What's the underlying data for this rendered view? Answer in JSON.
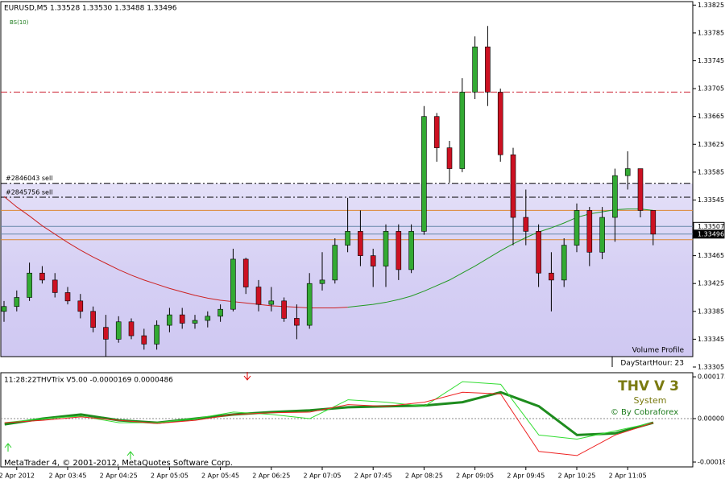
{
  "chart_data": [
    {
      "type": "candlestick",
      "title": "EURUSD,M5  1.33528 1.33530 1.33488 1.33496",
      "subtitle": "BS(10)",
      "categories": [
        null,
        "2 Apr 2012",
        null,
        null,
        null,
        "2 Apr 03:45",
        null,
        null,
        null,
        "2 Apr 04:25",
        null,
        null,
        null,
        "2 Apr 05:05",
        null,
        null,
        null,
        "2 Apr 05:45",
        null,
        null,
        null,
        "2 Apr 06:25",
        null,
        null,
        null,
        "2 Apr 07:05",
        null,
        null,
        null,
        "2 Apr 07:45",
        null,
        null,
        null,
        "2 Apr 08:25",
        null,
        null,
        null,
        "2 Apr 09:05",
        null,
        null,
        null,
        "2 Apr 09:45",
        null,
        null,
        null,
        "2 Apr 10:25",
        null,
        null,
        null,
        "2 Apr 11:05",
        null,
        null
      ],
      "open": [
        1.33385,
        1.33392,
        1.33405,
        1.3344,
        1.3343,
        1.33412,
        1.334,
        1.33385,
        1.33362,
        1.33345,
        1.3337,
        1.3335,
        1.33338,
        1.33365,
        1.3338,
        1.33368,
        1.33372,
        1.33378,
        1.33388,
        1.3346,
        1.3342,
        1.33395,
        1.334,
        1.33375,
        1.33365,
        1.33425,
        1.3343,
        1.3348,
        1.335,
        1.33465,
        1.3345,
        1.335,
        1.33445,
        1.335,
        1.33665,
        1.3362,
        1.3359,
        1.337,
        1.33765,
        1.337,
        1.3361,
        1.3352,
        1.335,
        1.3344,
        1.3343,
        1.3348,
        1.3353,
        1.3347,
        1.3352,
        1.3358,
        1.3359,
        1.3353
      ],
      "high": [
        1.334,
        1.33415,
        1.33455,
        1.3345,
        1.3344,
        1.3342,
        1.3341,
        1.33392,
        1.3338,
        1.33378,
        1.33375,
        1.3336,
        1.33372,
        1.3339,
        1.3339,
        1.3338,
        1.33385,
        1.33395,
        1.33475,
        1.33462,
        1.3343,
        1.3342,
        1.33405,
        1.33395,
        1.3344,
        1.3347,
        1.3349,
        1.33548,
        1.3353,
        1.33475,
        1.3351,
        1.3351,
        1.3351,
        1.3368,
        1.3367,
        1.3363,
        1.3372,
        1.3378,
        1.33795,
        1.33705,
        1.3362,
        1.3356,
        1.3351,
        1.3347,
        1.3349,
        1.3354,
        1.33535,
        1.33535,
        1.3359,
        1.33615,
        1.3359,
        1.3353
      ],
      "low": [
        1.3337,
        1.33385,
        1.334,
        1.33425,
        1.33405,
        1.33395,
        1.33375,
        1.33355,
        1.3332,
        1.3334,
        1.33345,
        1.3333,
        1.3333,
        1.33355,
        1.3336,
        1.3336,
        1.33362,
        1.3337,
        1.33385,
        1.3341,
        1.33385,
        1.33385,
        1.3337,
        1.33345,
        1.3336,
        1.33415,
        1.33425,
        1.3347,
        1.3345,
        1.3342,
        1.3342,
        1.3343,
        1.3344,
        1.33495,
        1.336,
        1.3357,
        1.33585,
        1.3369,
        1.3368,
        1.336,
        1.3348,
        1.3348,
        1.3342,
        1.33385,
        1.3342,
        1.3347,
        1.3345,
        1.3346,
        1.33485,
        1.3356,
        1.3352,
        1.3348
      ],
      "close": [
        1.33392,
        1.33405,
        1.3344,
        1.3343,
        1.33412,
        1.334,
        1.33385,
        1.33362,
        1.33345,
        1.3337,
        1.3335,
        1.33338,
        1.33365,
        1.3338,
        1.33368,
        1.33372,
        1.33378,
        1.33388,
        1.3346,
        1.3342,
        1.33395,
        1.334,
        1.33375,
        1.33365,
        1.33425,
        1.3343,
        1.3348,
        1.335,
        1.33465,
        1.3345,
        1.335,
        1.33445,
        1.335,
        1.33665,
        1.3362,
        1.3359,
        1.337,
        1.33765,
        1.337,
        1.3361,
        1.3352,
        1.335,
        1.3344,
        1.3343,
        1.3348,
        1.3353,
        1.3347,
        1.3352,
        1.3358,
        1.3359,
        1.3353,
        1.33496
      ],
      "up_color": "#33aa33",
      "down_color": "#cc1122",
      "lines": [
        {
          "color": "#cc2222",
          "values": [
            1.3355,
            1.33535,
            1.33522,
            1.33508,
            1.33496,
            1.33484,
            1.33473,
            1.33463,
            1.33454,
            1.33445,
            1.33437,
            1.3343,
            1.33424,
            1.33418,
            1.33413,
            1.33408,
            1.33404,
            1.33401,
            1.33399,
            1.33397,
            1.33395,
            1.33393,
            1.33392,
            1.33391,
            1.3339,
            1.3339,
            1.3339,
            1.33391,
            null,
            null,
            null,
            null,
            null,
            null,
            null,
            null,
            null,
            null,
            null,
            null,
            null,
            null,
            null,
            null,
            null,
            null,
            null,
            null,
            null,
            null,
            null,
            null
          ]
        },
        {
          "color": "#229922",
          "values": [
            null,
            null,
            null,
            null,
            null,
            null,
            null,
            null,
            null,
            null,
            null,
            null,
            null,
            null,
            null,
            null,
            null,
            null,
            null,
            null,
            null,
            null,
            null,
            null,
            null,
            null,
            null,
            1.33391,
            1.33393,
            1.33395,
            1.33398,
            1.33402,
            1.33407,
            1.33414,
            1.33422,
            1.3343,
            1.3344,
            1.3345,
            1.33461,
            1.33472,
            1.33482,
            1.33491,
            1.33499,
            1.33505,
            1.33512,
            1.3352,
            1.33525,
            1.33528,
            1.33531,
            1.33532,
            1.33532,
            1.3353
          ]
        }
      ],
      "levels": [
        {
          "value": 1.337,
          "color": "#cc2233",
          "dash": "8 3 2 3"
        },
        {
          "value": 1.33569,
          "color": "#000000",
          "dash": "8 3 2 3",
          "label": "#2846043 sell"
        },
        {
          "value": 1.33549,
          "color": "#000000",
          "dash": "8 3 2 3",
          "label": "#2845756 sell"
        },
        {
          "value": 1.3353,
          "color": "#dd8833",
          "dash": "none"
        },
        {
          "value": 1.33488,
          "color": "#dd8833",
          "dash": "none"
        },
        {
          "value": 1.33507,
          "color": "#6688aa",
          "dash": "none"
        },
        {
          "value": 1.33496,
          "color": "#6688aa",
          "dash": "none"
        }
      ],
      "price_markers": [
        1.33507,
        1.33496
      ],
      "annotations": [
        "Volume Profile",
        "DayStartHour: 23"
      ],
      "ylim": [
        1.3332,
        1.3383
      ],
      "yticks": [
        1.33825,
        1.33785,
        1.33745,
        1.33705,
        1.33665,
        1.33625,
        1.33585,
        1.33545,
        1.33505,
        1.33465,
        1.33425,
        1.33385,
        1.33345,
        1.33305
      ]
    },
    {
      "type": "line",
      "title": "11:28:22THVTrix V5.00 -0.0000169 0.0000486",
      "annotations": [
        "THV V 3",
        "System",
        "© By Cobraforex"
      ],
      "footer": "MetaTrader 4, © 2001-2012, MetaQuotes Software Corp.",
      "x": [
        0,
        3,
        6,
        9,
        12,
        15,
        18,
        21,
        24,
        27,
        30,
        33,
        36,
        39,
        42,
        45,
        48,
        51
      ],
      "series": [
        {
          "color": "#1e8c1e",
          "width": 3,
          "values": [
            -2.4e-05,
            0,
            1.7e-05,
            -7e-06,
            -1.7e-05,
            0,
            1.7e-05,
            2.7e-05,
            3.4e-05,
            4.7e-05,
            5.1e-05,
            5.4e-05,
            6.8e-05,
            0.000109,
            5.1e-05,
            -6.8e-05,
            -6.1e-05,
            -1.7e-05
          ]
        },
        {
          "color": "#33dd33",
          "width": 1,
          "values": [
            -1.7e-05,
            0,
            1e-05,
            -1.7e-05,
            -1.7e-05,
            0,
            2.7e-05,
            1.7e-05,
            0,
            7.8e-05,
            6.8e-05,
            5.1e-05,
            0.000153,
            0.000142,
            -6.8e-05,
            -8.5e-05,
            -5.1e-05,
            -1.7e-05
          ]
        },
        {
          "color": "#ee2222",
          "width": 1,
          "values": [
            -1.7e-05,
            -7e-06,
            7e-06,
            -7e-06,
            -2e-05,
            -7e-06,
            1.7e-05,
            2.4e-05,
            2.7e-05,
            5.8e-05,
            5.1e-05,
            6.8e-05,
            0.000109,
            0.000102,
            -0.000136,
            -0.000153,
            -6.8e-05,
            -1.7e-05
          ]
        }
      ],
      "xlim": [
        -0.3,
        54.1
      ],
      "ylim": [
        -0.0002,
        0.00019
      ],
      "yticks": [
        0.000173,
        {
          "value": 0,
          "label": "0.00000"
        },
        -0.00018
      ]
    }
  ]
}
